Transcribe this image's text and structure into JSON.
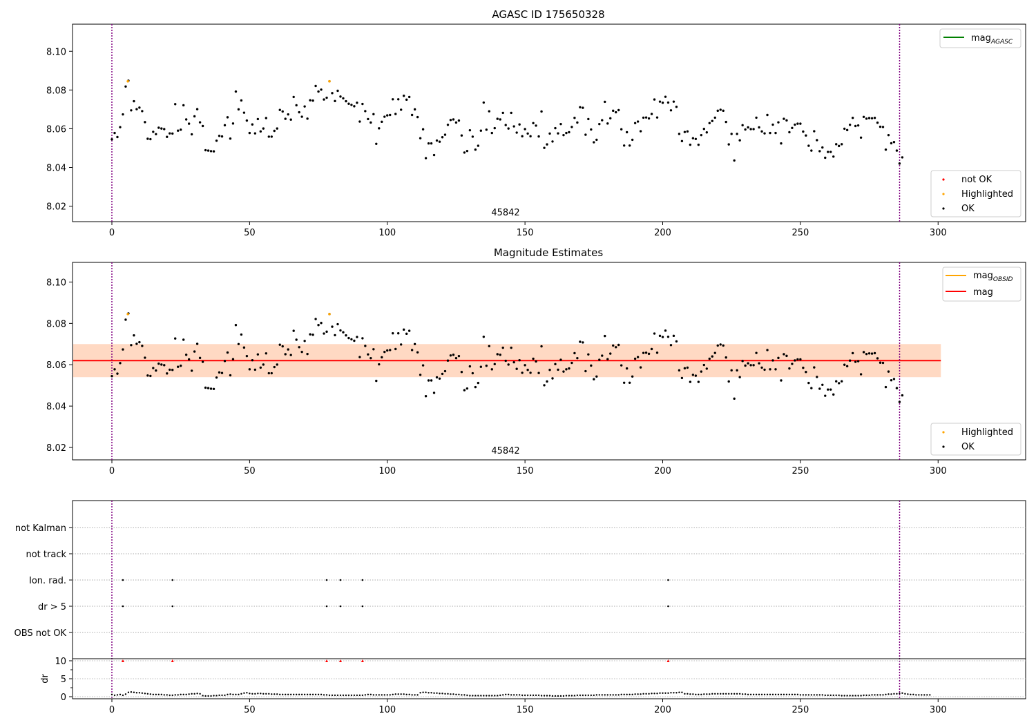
{
  "chart_data": [
    {
      "type": "scatter",
      "title": "AGASC ID 175650328",
      "xlim": [
        -14,
        332
      ],
      "ylim": [
        8.012,
        8.114
      ],
      "xticks": [
        0,
        50,
        100,
        150,
        200,
        250,
        300
      ],
      "yticks": [
        8.02,
        8.04,
        8.06,
        8.08,
        8.1
      ],
      "obsid_label": "45842",
      "obsid_bounds": [
        0,
        286.1
      ],
      "legend_top": {
        "name": "mag",
        "sub": "AGASC",
        "color": "#008000"
      },
      "legend_bottom": [
        {
          "name": "not OK",
          "color": "#ff0000"
        },
        {
          "name": "Highlighted",
          "color": "#ffa500"
        },
        {
          "name": "OK",
          "color": "#000000"
        }
      ],
      "highlighted": [
        [
          5.8,
          8.0845
        ],
        [
          79.0,
          8.0845
        ]
      ]
    },
    {
      "type": "scatter",
      "title": "Magnitude Estimates",
      "xlim": [
        -14,
        332
      ],
      "ylim": [
        8.014,
        8.1095
      ],
      "xticks": [
        0,
        50,
        100,
        150,
        200,
        250,
        300
      ],
      "yticks": [
        8.02,
        8.04,
        8.06,
        8.08,
        8.1
      ],
      "obsid_label": "45842",
      "mag": 8.062,
      "mag_band": [
        8.054,
        8.07
      ],
      "mag_obsid": 8.062,
      "band_xrange": [
        -14,
        301
      ],
      "legend_top": [
        {
          "name": "mag",
          "sub": "OBSID",
          "color": "#ffa500"
        },
        {
          "name": "mag",
          "sub": "",
          "color": "#ff0000"
        }
      ],
      "legend_bottom": [
        {
          "name": "Highlighted",
          "color": "#ffa500"
        },
        {
          "name": "OK",
          "color": "#000000"
        }
      ],
      "highlighted": [
        [
          5.8,
          8.0845
        ],
        [
          79.0,
          8.0845
        ]
      ]
    },
    {
      "type": "scatter",
      "title": "",
      "categories": [
        "not Kalman",
        "not track",
        "Ion. rad.",
        "dr > 5",
        "OBS not OK"
      ],
      "ion_rad_x": [
        4,
        22,
        78,
        83,
        91,
        202
      ],
      "dr_gt5_x": [
        4,
        22,
        78,
        83,
        91,
        202
      ],
      "xticks": [
        0,
        50,
        100,
        150,
        200,
        250,
        300
      ]
    },
    {
      "type": "scatter",
      "ylabel": "dr",
      "yticks": [
        0,
        5,
        10
      ],
      "ylim": [
        -0.5,
        10.5
      ],
      "xticks": [
        0,
        50,
        100,
        150,
        200,
        250,
        300
      ],
      "xlim": [
        -14,
        332
      ],
      "dr_clipped_x": [
        4,
        22,
        78,
        83,
        91,
        202
      ],
      "dr_clipped_value": 10
    }
  ],
  "series_mag": [
    8.0545,
    8.0578,
    8.0557,
    8.0608,
    8.0674,
    8.0818,
    8.0848,
    8.0695,
    8.0742,
    8.0701,
    8.0709,
    8.0691,
    8.0634,
    8.0548,
    8.0546,
    8.0584,
    8.0572,
    8.0605,
    8.0601,
    8.0598,
    8.0558,
    8.0576,
    8.0575,
    8.0727,
    8.059,
    8.0595,
    8.0721,
    8.0648,
    8.0626,
    8.0571,
    8.0664,
    8.0701,
    8.0633,
    8.0614,
    8.0489,
    8.0487,
    8.0484,
    8.0483,
    8.0538,
    8.0563,
    8.056,
    8.0618,
    8.0659,
    8.0549,
    8.0627,
    8.0792,
    8.07,
    8.0746,
    8.0683,
    8.0642,
    8.0578,
    8.0622,
    8.0576,
    8.065,
    8.0586,
    8.0601,
    8.0655,
    8.0559,
    8.0559,
    8.0589,
    8.0601,
    8.0697,
    8.0689,
    8.0651,
    8.0674,
    8.0647,
    8.0764,
    8.0721,
    8.0685,
    8.0662,
    8.0715,
    8.0652,
    8.0747,
    8.0745,
    8.0821,
    8.0792,
    8.0802,
    8.0751,
    8.076,
    8.0845,
    8.0784,
    8.0743,
    8.0796,
    8.0766,
    8.0757,
    8.0742,
    8.0729,
    8.0723,
    8.0716,
    8.0734,
    8.0637,
    8.0728,
    8.0691,
    8.065,
    8.0632,
    8.0675,
    8.0522,
    8.0602,
    8.0636,
    8.0662,
    8.0669,
    8.0671,
    8.0752,
    8.0676,
    8.0752,
    8.0698,
    8.077,
    8.075,
    8.0764,
    8.0671,
    8.07,
    8.066,
    8.0551,
    8.0597,
    8.0448,
    8.0524,
    8.0524,
    8.0464,
    8.0539,
    8.0533,
    8.0556,
    8.0569,
    8.062,
    8.0645,
    8.0648,
    8.0632,
    8.0642,
    8.0565,
    8.0477,
    8.0485,
    8.0592,
    8.0559,
    8.0492,
    8.0512,
    8.059,
    8.0735,
    8.0595,
    8.069,
    8.0578,
    8.0603,
    8.0651,
    8.0648,
    8.0682,
    8.0619,
    8.0601,
    8.0682,
    8.0612,
    8.058,
    8.0622,
    8.0561,
    8.0598,
    8.0575,
    8.0561,
    8.0629,
    8.0616,
    8.056,
    8.0689,
    8.0501,
    8.0519,
    8.0575,
    8.0534,
    8.0603,
    8.0576,
    8.0624,
    8.0567,
    8.0578,
    8.0582,
    8.0609,
    8.0656,
    8.0632,
    8.0711,
    8.0708,
    8.0569,
    8.065,
    8.0596,
    8.053,
    8.0543,
    8.0624,
    8.0644,
    8.0739,
    8.0627,
    8.0654,
    8.0693,
    8.0685,
    8.0696,
    8.0597,
    8.0513,
    8.0582,
    8.0513,
    8.0543,
    8.0629,
    8.0637,
    8.0587,
    8.0657,
    8.0658,
    8.0653,
    8.0676,
    8.0751,
    8.0658,
    8.074,
    8.0734,
    8.0765,
    8.0735,
    8.0695,
    8.074,
    8.0713,
    8.0573,
    8.0536,
    8.0583,
    8.0586,
    8.0517,
    8.0551,
    8.0547,
    8.0517,
    8.0567,
    8.0599,
    8.0581,
    8.0629,
    8.064,
    8.0657,
    8.0693,
    8.0698,
    8.0693,
    8.0635,
    8.0519,
    8.0573,
    8.0436,
    8.0573,
    8.054,
    8.0618,
    8.0596,
    8.0607,
    8.0598,
    8.0598,
    8.0657,
    8.0607,
    8.0586,
    8.0576,
    8.0671,
    8.0578,
    8.0621,
    8.0578,
    8.0633,
    8.0524,
    8.0651,
    8.0643,
    8.0582,
    8.0604,
    8.0621,
    8.0626,
    8.0626,
    8.0585,
    8.0565,
    8.0512,
    8.0487,
    8.0587,
    8.0541,
    8.0484,
    8.0503,
    8.045,
    8.048,
    8.048,
    8.0456,
    8.052,
    8.0511,
    8.052,
    8.06,
    8.0593,
    8.062,
    8.0656,
    8.0614,
    8.0617,
    8.0554,
    8.0661,
    8.0652,
    8.0655,
    8.0654,
    8.0656,
    8.0631,
    8.061,
    8.0609,
    8.0492,
    8.0567,
    8.0525,
    8.0531,
    8.0487,
    8.042,
    8.0452
  ],
  "series_dr": [
    0.6,
    0.4,
    0.5,
    0.6,
    0.4,
    0.7,
    1.2,
    1.3,
    1.2,
    1.1,
    1.1,
    1.0,
    0.9,
    0.8,
    0.7,
    0.6,
    0.6,
    0.6,
    0.6,
    0.5,
    0.5,
    0.4,
    0.4,
    0.5,
    0.5,
    0.6,
    0.6,
    0.6,
    0.7,
    0.8,
    0.8,
    0.9,
    0.8,
    0.3,
    0.2,
    0.2,
    0.2,
    0.3,
    0.3,
    0.4,
    0.4,
    0.4,
    0.6,
    0.7,
    0.6,
    0.6,
    0.6,
    0.8,
    1.0,
    1.1,
    0.9,
    0.8,
    0.8,
    0.9,
    0.9,
    0.8,
    0.8,
    0.8,
    0.7,
    0.7,
    0.7,
    0.6,
    0.6,
    0.6,
    0.6,
    0.6,
    0.6,
    0.6,
    0.6,
    0.6,
    0.6,
    0.6,
    0.6,
    0.6,
    0.6,
    0.6,
    0.6,
    0.5,
    0.5,
    0.4,
    0.4,
    0.4,
    0.4,
    0.4,
    0.4,
    0.4,
    0.4,
    0.4,
    0.4,
    0.4,
    0.4,
    0.4,
    0.5,
    0.6,
    0.6,
    0.5,
    0.5,
    0.5,
    0.5,
    0.5,
    0.5,
    0.5,
    0.6,
    0.7,
    0.7,
    0.7,
    0.7,
    0.6,
    0.6,
    0.5,
    0.5,
    0.5,
    1.1,
    1.2,
    1.2,
    1.1,
    1.1,
    1.0,
    1.0,
    0.9,
    0.9,
    0.8,
    0.8,
    0.7,
    0.7,
    0.6,
    0.6,
    0.5,
    0.5,
    0.4,
    0.3,
    0.3,
    0.3,
    0.3,
    0.3,
    0.3,
    0.3,
    0.3,
    0.3,
    0.3,
    0.3,
    0.4,
    0.5,
    0.6,
    0.6,
    0.5,
    0.5,
    0.5,
    0.5,
    0.4,
    0.4,
    0.4,
    0.4,
    0.4,
    0.4,
    0.4,
    0.3,
    0.3,
    0.3,
    0.3,
    0.2,
    0.2,
    0.2,
    0.2,
    0.2,
    0.3,
    0.3,
    0.3,
    0.3,
    0.4,
    0.4,
    0.4,
    0.4,
    0.4,
    0.4,
    0.4,
    0.5,
    0.5,
    0.5,
    0.5,
    0.5,
    0.5,
    0.5,
    0.5,
    0.5,
    0.6,
    0.6,
    0.6,
    0.6,
    0.6,
    0.7,
    0.7,
    0.7,
    0.8,
    0.8,
    0.8,
    0.9,
    0.9,
    0.9,
    1.0,
    1.0,
    1.0,
    1.0,
    1.1,
    1.1,
    1.1,
    1.2,
    1.2,
    0.8,
    0.8,
    0.7,
    0.7,
    0.6,
    0.6,
    0.6,
    0.7,
    0.7,
    0.7,
    0.8,
    0.8,
    0.8,
    0.8,
    0.8,
    0.8,
    0.8,
    0.8,
    0.8,
    0.8,
    0.8,
    0.7,
    0.7,
    0.6,
    0.6,
    0.6,
    0.6,
    0.6,
    0.6,
    0.6,
    0.6,
    0.6,
    0.6,
    0.6,
    0.6,
    0.6,
    0.6,
    0.6,
    0.6,
    0.6,
    0.6,
    0.6,
    0.5,
    0.5,
    0.5,
    0.5,
    0.5,
    0.5,
    0.5,
    0.5,
    0.5,
    0.4,
    0.4,
    0.4,
    0.4,
    0.4,
    0.4,
    0.3,
    0.3,
    0.3,
    0.3,
    0.3,
    0.3,
    0.3,
    0.3,
    0.4,
    0.4,
    0.4,
    0.5,
    0.5,
    0.5,
    0.5,
    0.5,
    0.6,
    0.7,
    0.7,
    0.8,
    0.8,
    0.9,
    1.0,
    0.8,
    0.7,
    0.6,
    0.6,
    0.5,
    0.5,
    0.5,
    0.5,
    0.5,
    0.5
  ]
}
